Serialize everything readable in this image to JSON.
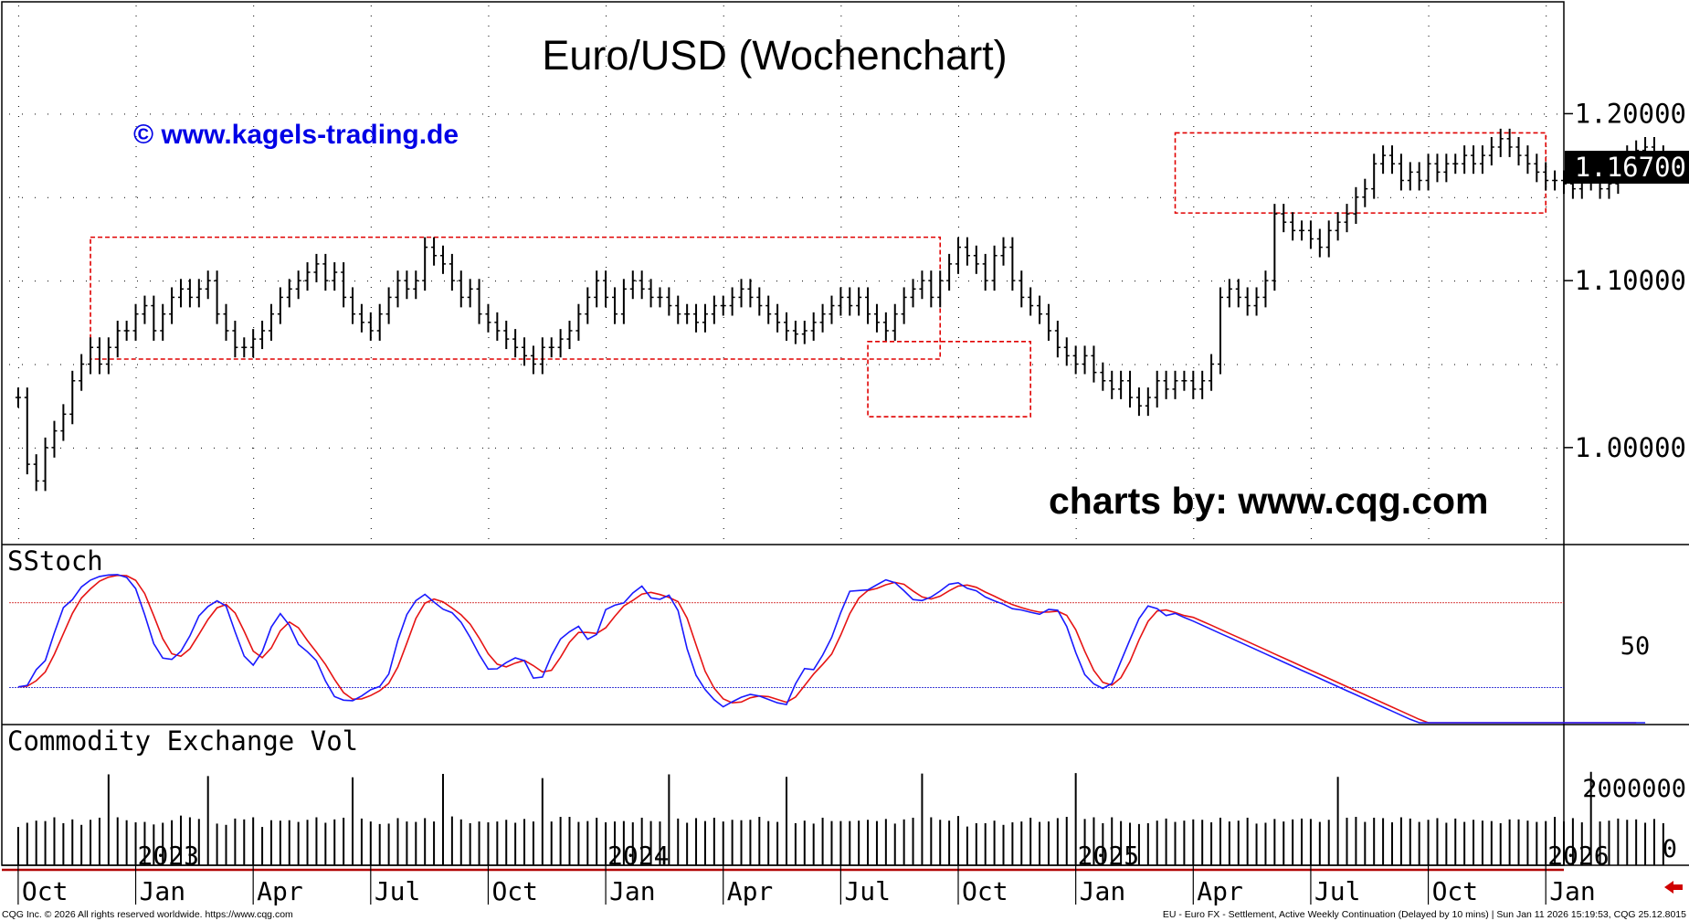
{
  "chart_data": {
    "type": "ohlc",
    "title": "Euro/USD (Wochenchart)",
    "watermark": "© www.kagels-trading.de",
    "credit": "charts by: www.cqg.com",
    "price_axis": {
      "ticks": [
        "1.20000",
        "1.10000",
        "1.00000"
      ],
      "tick_values": [
        1.2,
        1.1,
        1.0
      ],
      "ylim": [
        0.943,
        1.267
      ],
      "current_price_label": "1.16700",
      "current_price": 1.167
    },
    "x_axis": {
      "month_labels": [
        "Oct",
        "Jan",
        "Apr",
        "Jul",
        "Oct",
        "Jan",
        "Apr",
        "Jul",
        "Oct",
        "Jan",
        "Apr",
        "Jul",
        "Oct",
        "Jan"
      ],
      "year_labels": [
        "2023",
        "2024",
        "2025",
        "2026"
      ],
      "week_range": [
        -1,
        171
      ]
    },
    "weekly_close": [
      1.03,
      0.99,
      0.98,
      1.0,
      1.01,
      1.02,
      1.04,
      1.05,
      1.06,
      1.05,
      1.06,
      1.07,
      1.07,
      1.08,
      1.085,
      1.07,
      1.08,
      1.09,
      1.095,
      1.09,
      1.095,
      1.1,
      1.08,
      1.07,
      1.06,
      1.06,
      1.065,
      1.07,
      1.08,
      1.09,
      1.095,
      1.1,
      1.105,
      1.11,
      1.1,
      1.105,
      1.09,
      1.08,
      1.075,
      1.07,
      1.08,
      1.09,
      1.1,
      1.095,
      1.1,
      1.12,
      1.115,
      1.11,
      1.1,
      1.09,
      1.095,
      1.08,
      1.075,
      1.07,
      1.065,
      1.06,
      1.055,
      1.05,
      1.06,
      1.06,
      1.065,
      1.07,
      1.08,
      1.09,
      1.1,
      1.09,
      1.08,
      1.095,
      1.1,
      1.095,
      1.09,
      1.09,
      1.085,
      1.08,
      1.08,
      1.075,
      1.08,
      1.085,
      1.085,
      1.09,
      1.095,
      1.09,
      1.085,
      1.08,
      1.075,
      1.07,
      1.068,
      1.07,
      1.075,
      1.08,
      1.085,
      1.09,
      1.085,
      1.09,
      1.08,
      1.075,
      1.07,
      1.08,
      1.09,
      1.095,
      1.1,
      1.09,
      1.1,
      1.11,
      1.12,
      1.115,
      1.11,
      1.1,
      1.115,
      1.12,
      1.1,
      1.09,
      1.085,
      1.08,
      1.07,
      1.06,
      1.055,
      1.05,
      1.055,
      1.045,
      1.04,
      1.035,
      1.04,
      1.03,
      1.025,
      1.03,
      1.04,
      1.035,
      1.04,
      1.04,
      1.035,
      1.04,
      1.05,
      1.09,
      1.095,
      1.09,
      1.085,
      1.09,
      1.1,
      1.14,
      1.135,
      1.13,
      1.13,
      1.125,
      1.12,
      1.13,
      1.135,
      1.14,
      1.15,
      1.155,
      1.17,
      1.175,
      1.17,
      1.16,
      1.165,
      1.16,
      1.17,
      1.165,
      1.17,
      1.17,
      1.175,
      1.17,
      1.175,
      1.18,
      1.185,
      1.18,
      1.175,
      1.17,
      1.165,
      1.16,
      1.16,
      1.158,
      1.155,
      1.16,
      1.162,
      1.155,
      1.158,
      1.165,
      1.175,
      1.178,
      1.18,
      1.175,
      1.167
    ],
    "stochastic": {
      "label": "SStoch",
      "tick_label": "50",
      "tick_value": 50,
      "ylim": [
        -5,
        120
      ],
      "upper_level": 80,
      "lower_level": 20,
      "k_percent": [
        20.4,
        21.4,
        32.6,
        39.1,
        58.7,
        76.6,
        82.3,
        91.3,
        96.1,
        98.7,
        99.7,
        100.0,
        98.0,
        90.1,
        71.6,
        51.1,
        40.8,
        39.9,
        45.6,
        56.6,
        70.7,
        77.4,
        81.4,
        77.7,
        59.4,
        42.2,
        35.8,
        45.4,
        62.8,
        72.3,
        64.1,
        50.6,
        45.3,
        39.0,
        24.6,
        13.5,
        11.0,
        10.6,
        14.0,
        18.4,
        20.7,
        29.5,
        53.4,
        71.7,
        81.6,
        86.0,
        80.5,
        75.5,
        73.0,
        66.2,
        55.5,
        43.3,
        33.0,
        33.2,
        37.6,
        41.0,
        39.0,
        26.6,
        27.4,
        42.6,
        54.3,
        59.5,
        63.3,
        54.1,
        57.6,
        75.2,
        78.3,
        79.9,
        87.0,
        91.8,
        83.5,
        82.5,
        85.4,
        74.5,
        47.4,
        28.6,
        18.5,
        11.3,
        6.3,
        9.8,
        13.1,
        15.1,
        13.9,
        11.5,
        9.1,
        7.9,
        22.6,
        33.4,
        32.6,
        42.9,
        55.5,
        73.1,
        88.2,
        88.7,
        89.2,
        92.8,
        96.3,
        94.3,
        88.6,
        82.3,
        81.6,
        84.1,
        88.3,
        93.2,
        94.2,
        90.3,
        88.5,
        84.1,
        81.4,
        79.0,
        75.8,
        74.9,
        73.3,
        71.9,
        75.3,
        74.7,
        63.2,
        44.7,
        29.1,
        22.5,
        19.3,
        22.9,
        38.5,
        53.9,
        68.8,
        77.8,
        75.9,
        71.0,
        72.5,
        69.6,
        67.0,
        64.1,
        61.2,
        58.3,
        55.4,
        52.5,
        49.6,
        46.7,
        43.8,
        40.9,
        38.0,
        35.1,
        32.2,
        29.3,
        26.4,
        23.5,
        20.6,
        17.7,
        14.8,
        11.9,
        9.0,
        6.1,
        3.2,
        0.3,
        -2.6,
        -5.5,
        -8.4,
        -11.3,
        -14.2,
        -17.1,
        -20.0,
        -22.9,
        -25.8,
        -28.7,
        -31.6,
        -34.5,
        -37.4,
        -40.3,
        -43.2,
        -46.1,
        -49.0,
        -51.9,
        -54.8,
        -57.7,
        -60.6,
        -63.5,
        -66.4,
        -69.3,
        -72.2,
        -75.1,
        -78.0
      ],
      "d_percent": [
        20.4,
        20.9,
        24.8,
        31.0,
        43.5,
        58.1,
        72.5,
        83.4,
        89.9,
        95.4,
        98.2,
        99.5,
        99.2,
        96.0,
        86.6,
        70.9,
        54.5,
        43.9,
        42.1,
        47.4,
        57.6,
        68.2,
        76.5,
        78.8,
        72.8,
        59.8,
        45.8,
        41.1,
        48.0,
        60.2,
        66.4,
        62.3,
        53.3,
        45.0,
        36.3,
        25.7,
        16.4,
        11.7,
        11.9,
        14.3,
        17.7,
        22.9,
        34.5,
        51.5,
        68.9,
        79.8,
        82.7,
        80.7,
        76.3,
        71.5,
        64.9,
        55.0,
        43.9,
        36.5,
        34.6,
        37.3,
        39.2,
        35.5,
        31.0,
        32.2,
        41.4,
        52.1,
        59.0,
        59.0,
        58.3,
        62.3,
        70.4,
        77.8,
        81.7,
        86.2,
        87.4,
        85.9,
        83.8,
        80.8,
        69.1,
        50.2,
        31.5,
        19.5,
        12.0,
        9.1,
        9.7,
        12.7,
        14.0,
        13.5,
        11.5,
        9.5,
        13.2,
        21.3,
        29.5,
        36.3,
        43.7,
        57.2,
        72.3,
        83.3,
        88.7,
        90.2,
        92.8,
        94.5,
        93.1,
        88.4,
        84.2,
        82.7,
        84.7,
        88.5,
        91.9,
        92.6,
        91.0,
        87.6,
        84.7,
        81.5,
        78.7,
        76.6,
        74.7,
        73.4,
        73.5,
        74.0,
        71.1,
        60.9,
        45.7,
        32.1,
        23.6,
        21.6,
        26.9,
        38.4,
        53.7,
        66.8,
        74.2,
        74.9,
        73.1,
        71.0,
        69.7,
        66.9,
        64.1,
        61.2,
        58.3,
        55.4,
        52.5,
        49.6,
        46.7,
        43.8,
        40.9,
        38.0,
        35.1,
        32.2,
        29.3,
        26.4,
        23.5,
        20.6,
        17.7,
        14.8,
        11.9,
        9.0,
        6.1,
        3.2,
        0.3,
        -2.6,
        -5.5,
        -8.4,
        -11.3,
        -14.2,
        -17.1,
        -20.0,
        -22.9,
        -25.8,
        -28.7,
        -31.6,
        -34.5,
        -37.4,
        -40.3,
        -43.2,
        -46.1,
        -49.0,
        -51.9,
        -54.8,
        -57.7,
        -60.6,
        -63.5,
        -66.4,
        -69.3,
        -72.2
      ]
    },
    "volume": {
      "label": "Commodity Exchange Vol",
      "tick_labels": [
        "2000000",
        "0"
      ],
      "tick_values": [
        2000000,
        0
      ],
      "ylim": [
        0,
        3300000
      ],
      "values": [
        910000,
        1010000,
        1060000,
        1050000,
        1140000,
        999999,
        1090000,
        960000,
        1080000,
        1130000,
        2160000,
        1140000,
        1070000,
        1020000,
        1030000,
        970000,
        1010000,
        1070000,
        1180000,
        1140000,
        1100000,
        2120000,
        990000,
        960000,
        1110000,
        1090000,
        1140000,
        910000,
        1070000,
        1060000,
        1070000,
        1030000,
        1080000,
        1140000,
        1010000,
        1090000,
        1130000,
        2090000,
        1110000,
        1040000,
        980000,
        990000,
        1120000,
        1040000,
        1030000,
        1120000,
        1040000,
        2170000,
        1160000,
        1090000,
        999999,
        1040000,
        1020000,
        1040000,
        1080000,
        1010000,
        1100000,
        1040000,
        2070000,
        1040000,
        1150000,
        1150000,
        1030000,
        1050000,
        1130000,
        1020000,
        1040000,
        1050000,
        1020000,
        1130000,
        1050000,
        1040000,
        2160000,
        1110000,
        1010000,
        1120000,
        1050000,
        1130000,
        1040000,
        1080000,
        1070000,
        1080000,
        1150000,
        1050000,
        1030000,
        2100000,
        999999,
        1060000,
        990000,
        1130000,
        1050000,
        1050000,
        1050000,
        1060000,
        1080000,
        1050000,
        1100000,
        990000,
        1090000,
        1130000,
        2180000,
        1140000,
        1080000,
        1060000,
        1170000,
        920000,
        1000000,
        1000000,
        1060000,
        960000,
        1020000,
        1040000,
        1130000,
        1030000,
        1040000,
        1120000,
        1150000,
        2190000,
        1100000,
        1140000,
        1000000,
        1140000,
        1050000,
        1010000,
        980000,
        1000000,
        1060000,
        1110000,
        1030000,
        1060000,
        1090000,
        1080000,
        1020000,
        1130000,
        1040000,
        1060000,
        1130000,
        990000,
        1010000,
        1100000,
        1040000,
        1090000,
        1110000,
        1100000,
        1030000,
        1080000,
        2100000,
        1130000,
        1150000,
        1030000,
        1130000,
        1120000,
        1020000,
        1140000,
        1110000,
        1030000,
        1080000,
        1120000,
        1010000,
        1110000,
        1030000,
        1080000,
        1060000,
        1050000,
        1000000,
        1090000,
        1090000,
        1060000,
        1030000,
        1050000,
        1150000,
        1040000,
        1120000,
        1020000,
        2220000,
        1040000,
        1060000,
        1110000,
        1080000,
        1090000,
        1010000,
        1100000,
        1000000,
        1150000,
        1060000
      ]
    },
    "annotations": {
      "boxes": [
        "range 2023-2024",
        "bottom late 2024",
        "range 2025"
      ],
      "box_price_ranges": [
        [
          1.053,
          1.126
        ],
        [
          1.0185,
          1.0635
        ],
        [
          1.1405,
          1.1885
        ]
      ]
    },
    "colors": {
      "candles": "#000000",
      "stoch_k": "#1a1aff",
      "stoch_d": "#e61414",
      "boxes": "#e00000",
      "watermark": "#0000e6",
      "grid_dots": "#000000"
    }
  },
  "footer": {
    "left": "CQG Inc. © 2026 All rights reserved worldwide. https://www.cqg.com",
    "right": "EU - Euro FX - Settlement, Active Weekly Continuation (Delayed by 10 mins) | Sun Jan 11 2026 15:19:53, CQG 25.12.8015"
  }
}
